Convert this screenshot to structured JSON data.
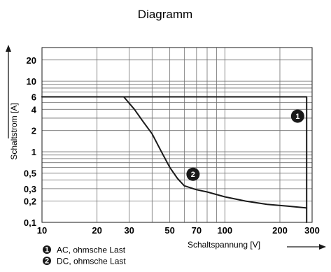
{
  "chart_data": {
    "type": "line",
    "title": "Diagramm",
    "xlabel": "Schaltspannung [V]",
    "ylabel": "Schaltstrom [A]",
    "xscale": "log",
    "yscale": "log",
    "xlim": [
      10,
      300
    ],
    "ylim": [
      0.1,
      30
    ],
    "grid": true,
    "x_ticks": [
      {
        "v": 10,
        "label": "10"
      },
      {
        "v": 20,
        "label": "20"
      },
      {
        "v": 30,
        "label": "30"
      },
      {
        "v": 50,
        "label": "50"
      },
      {
        "v": 70,
        "label": "70"
      },
      {
        "v": 100,
        "label": "100"
      },
      {
        "v": 200,
        "label": "200"
      },
      {
        "v": 300,
        "label": "300"
      }
    ],
    "y_ticks": [
      {
        "v": 0.1,
        "label": "0,1"
      },
      {
        "v": 0.2,
        "label": "0,2"
      },
      {
        "v": 0.3,
        "label": "0,3"
      },
      {
        "v": 0.5,
        "label": "0,5"
      },
      {
        "v": 1,
        "label": "1"
      },
      {
        "v": 2,
        "label": "2"
      },
      {
        "v": 4,
        "label": "4"
      },
      {
        "v": 6,
        "label": "6"
      },
      {
        "v": 10,
        "label": "10"
      },
      {
        "v": 20,
        "label": "20"
      }
    ],
    "x_grid": [
      10,
      20,
      30,
      40,
      50,
      60,
      70,
      80,
      90,
      100,
      200,
      300
    ],
    "y_grid": [
      0.1,
      0.2,
      0.3,
      0.4,
      0.5,
      0.6,
      0.7,
      0.8,
      0.9,
      1,
      2,
      3,
      4,
      5,
      6,
      7,
      8,
      9,
      10,
      20,
      30
    ],
    "series": [
      {
        "name": "AC, ohmsche Last",
        "marker": "1",
        "x": [
          10,
          280,
          280
        ],
        "y": [
          6,
          6,
          0.1
        ]
      },
      {
        "name": "DC, ohmsche Last",
        "marker": "2",
        "x": [
          10,
          28,
          32,
          36,
          40,
          45,
          50,
          55,
          60,
          70,
          80,
          100,
          130,
          170,
          220,
          280
        ],
        "y": [
          6,
          6,
          4,
          2.6,
          1.8,
          1.0,
          0.6,
          0.42,
          0.33,
          0.29,
          0.27,
          0.23,
          0.2,
          0.18,
          0.17,
          0.16
        ]
      }
    ],
    "annotations": [
      {
        "label": "1",
        "x": 250,
        "y": 3.2
      },
      {
        "label": "2",
        "x": 67,
        "y": 0.48
      }
    ],
    "legend_position": "bottom-left",
    "colors": {
      "line": "#1a1a1a",
      "grid": "#6e6e6e",
      "marker_fill": "#1a1a1a"
    }
  }
}
